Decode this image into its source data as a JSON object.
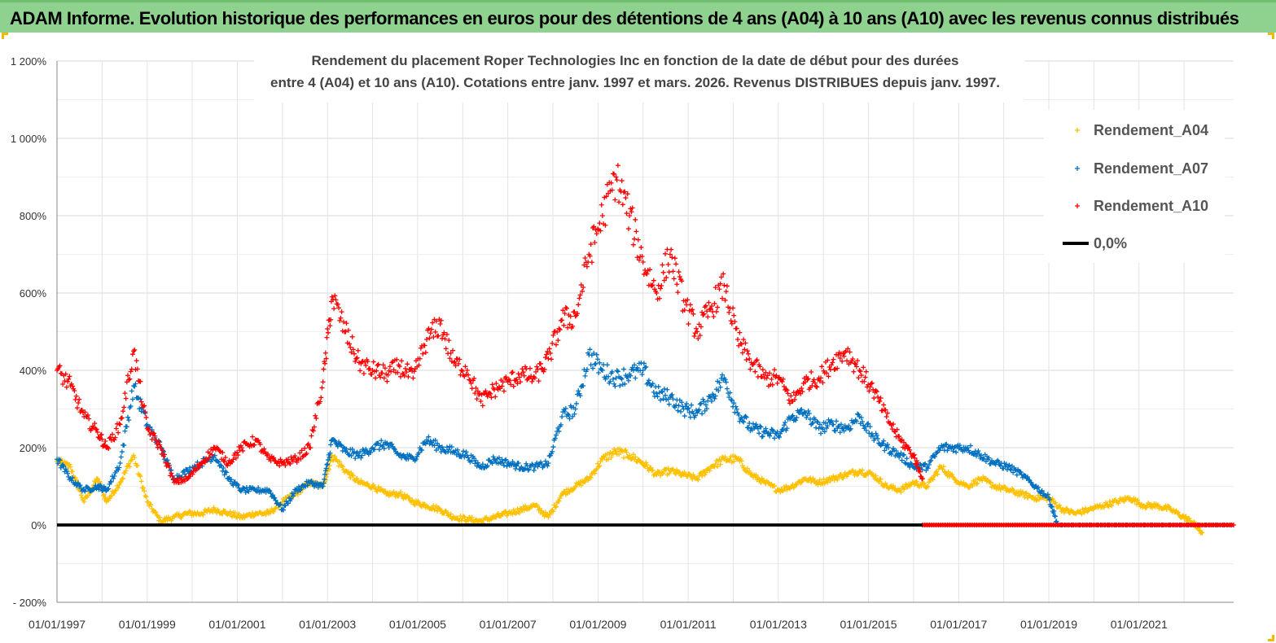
{
  "header": {
    "banner_text": "ADAM Informe. Evolution historique des performances en euros pour des détentions de 4 ans (A04) à 10 ans (A10) avec les revenus connus distribués"
  },
  "chart_data": {
    "type": "scatter",
    "title_lines": [
      "Rendement du placement Roper Technologies Inc en fonction de la date de début pour des durées",
      "entre 4 (A04) et 10 ans (A10).  Cotations entre janv. 1997 et mars. 2026. Revenus DISTRIBUES depuis janv. 1997."
    ],
    "x_tick_labels": [
      "01/01/1997",
      "01/01/1999",
      "01/01/2001",
      "01/01/2003",
      "01/01/2005",
      "01/01/2007",
      "01/01/2009",
      "01/01/2011",
      "01/01/2013",
      "01/01/2015",
      "01/01/2017",
      "01/01/2019",
      "01/01/2021"
    ],
    "x_tick_years": [
      1997,
      1999,
      2001,
      2003,
      2005,
      2007,
      2009,
      2011,
      2013,
      2015,
      2017,
      2019,
      2021
    ],
    "xlim": [
      1997.0,
      2023.1
    ],
    "y_tick_labels": [
      "- 200%",
      "0%",
      "200%",
      "400%",
      "600%",
      "800%",
      "1 000%",
      "1 200%"
    ],
    "y_tick_values": [
      -200,
      0,
      200,
      400,
      600,
      800,
      1000,
      1200
    ],
    "ylim": [
      -200,
      1200
    ],
    "grid": true,
    "legend_position": "top-right",
    "series": [
      {
        "name": "Rendement_A04",
        "color": "#ffc000",
        "marker": "+",
        "x": [
          1997.0,
          1997.3,
          1997.6,
          1997.9,
          1998.1,
          1998.4,
          1998.7,
          1999.0,
          1999.3,
          1999.6,
          1999.9,
          2000.2,
          2000.5,
          2000.8,
          2001.1,
          2001.4,
          2001.7,
          2002.0,
          2002.3,
          2002.6,
          2002.9,
          2003.1,
          2003.4,
          2003.7,
          2004.0,
          2004.3,
          2004.6,
          2004.9,
          2005.2,
          2005.5,
          2005.8,
          2006.1,
          2006.4,
          2006.7,
          2007.0,
          2007.3,
          2007.6,
          2007.9,
          2008.2,
          2008.5,
          2008.8,
          2009.1,
          2009.4,
          2009.7,
          2010.0,
          2010.3,
          2010.6,
          2010.9,
          2011.2,
          2011.5,
          2011.8,
          2012.1,
          2012.4,
          2012.7,
          2013.0,
          2013.3,
          2013.6,
          2013.9,
          2014.2,
          2014.5,
          2014.8,
          2015.1,
          2015.4,
          2015.7,
          2016.0,
          2016.3,
          2016.6,
          2016.9,
          2017.2,
          2017.5,
          2017.8,
          2018.1,
          2018.4,
          2018.7,
          2019.0,
          2019.3,
          2019.6,
          2019.9,
          2020.2,
          2020.5,
          2020.8,
          2021.1,
          2021.4,
          2021.7,
          2022.0,
          2022.2,
          2022.4
        ],
        "values": [
          165,
          150,
          60,
          120,
          60,
          110,
          180,
          60,
          10,
          20,
          30,
          30,
          40,
          30,
          20,
          30,
          30,
          60,
          80,
          110,
          100,
          180,
          140,
          110,
          100,
          80,
          80,
          60,
          50,
          40,
          20,
          15,
          10,
          20,
          30,
          40,
          50,
          20,
          80,
          100,
          120,
          170,
          190,
          180,
          160,
          130,
          140,
          130,
          120,
          150,
          170,
          170,
          130,
          110,
          90,
          100,
          120,
          110,
          120,
          130,
          140,
          130,
          100,
          90,
          110,
          100,
          150,
          120,
          100,
          120,
          100,
          90,
          80,
          70,
          70,
          40,
          30,
          40,
          50,
          60,
          70,
          50,
          50,
          40,
          20,
          5,
          -20
        ]
      },
      {
        "name": "Rendement_A07",
        "color": "#0070c0",
        "marker": "+",
        "x": [
          1997.0,
          1997.3,
          1997.6,
          1997.9,
          1998.1,
          1998.4,
          1998.7,
          1999.0,
          1999.3,
          1999.6,
          1999.9,
          2000.2,
          2000.5,
          2000.8,
          2001.1,
          2001.4,
          2001.7,
          2002.0,
          2002.3,
          2002.6,
          2002.9,
          2003.1,
          2003.4,
          2003.7,
          2004.0,
          2004.3,
          2004.6,
          2004.9,
          2005.2,
          2005.5,
          2005.8,
          2006.1,
          2006.4,
          2006.7,
          2007.0,
          2007.3,
          2007.6,
          2007.9,
          2008.2,
          2008.5,
          2008.8,
          2009.1,
          2009.4,
          2009.7,
          2010.0,
          2010.3,
          2010.6,
          2010.9,
          2011.2,
          2011.5,
          2011.8,
          2012.1,
          2012.4,
          2012.7,
          2013.0,
          2013.3,
          2013.6,
          2013.9,
          2014.2,
          2014.5,
          2014.8,
          2015.1,
          2015.4,
          2015.7,
          2016.0,
          2016.3,
          2016.6,
          2016.9,
          2017.2,
          2017.5,
          2017.8,
          2018.1,
          2018.4,
          2018.7,
          2019.0,
          2019.2
        ],
        "values": [
          170,
          120,
          90,
          100,
          90,
          160,
          360,
          260,
          200,
          120,
          140,
          160,
          180,
          120,
          90,
          90,
          90,
          40,
          90,
          110,
          100,
          220,
          190,
          180,
          200,
          210,
          180,
          170,
          220,
          200,
          190,
          180,
          150,
          170,
          160,
          150,
          150,
          160,
          280,
          300,
          440,
          400,
          380,
          390,
          400,
          340,
          330,
          300,
          290,
          330,
          380,
          290,
          250,
          240,
          230,
          280,
          290,
          250,
          260,
          250,
          280,
          230,
          200,
          180,
          150,
          150,
          200,
          200,
          200,
          180,
          160,
          150,
          130,
          100,
          70,
          0
        ]
      },
      {
        "name": "Rendement_A10",
        "color": "#ff0000",
        "marker": "+",
        "x": [
          1997.0,
          1997.3,
          1997.6,
          1997.9,
          1998.1,
          1998.4,
          1998.7,
          1999.0,
          1999.3,
          1999.6,
          1999.9,
          2000.2,
          2000.5,
          2000.8,
          2001.1,
          2001.4,
          2001.7,
          2002.0,
          2002.3,
          2002.6,
          2002.9,
          2003.1,
          2003.4,
          2003.7,
          2004.0,
          2004.3,
          2004.6,
          2004.9,
          2005.2,
          2005.5,
          2005.8,
          2006.1,
          2006.4,
          2006.7,
          2007.0,
          2007.3,
          2007.6,
          2007.9,
          2008.2,
          2008.5,
          2008.8,
          2009.1,
          2009.4,
          2009.7,
          2010.0,
          2010.3,
          2010.6,
          2010.9,
          2011.2,
          2011.5,
          2011.8,
          2012.1,
          2012.4,
          2012.7,
          2013.0,
          2013.3,
          2013.6,
          2013.9,
          2014.2,
          2014.5,
          2014.8,
          2015.1,
          2015.4,
          2015.7,
          2016.0,
          2016.2
        ],
        "values": [
          400,
          360,
          280,
          240,
          200,
          260,
          450,
          250,
          200,
          110,
          120,
          160,
          200,
          160,
          200,
          220,
          170,
          160,
          170,
          200,
          370,
          590,
          500,
          420,
          400,
          390,
          410,
          380,
          480,
          520,
          420,
          400,
          320,
          350,
          370,
          390,
          380,
          430,
          530,
          540,
          700,
          800,
          900,
          800,
          680,
          600,
          700,
          580,
          500,
          560,
          620,
          480,
          420,
          380,
          380,
          320,
          370,
          380,
          420,
          450,
          400,
          350,
          280,
          220,
          180,
          120
        ]
      },
      {
        "name": "0,0%",
        "color": "#000000",
        "marker": "line",
        "x": [
          1997.0,
          2023.1
        ],
        "values": [
          0,
          0
        ]
      }
    ]
  }
}
